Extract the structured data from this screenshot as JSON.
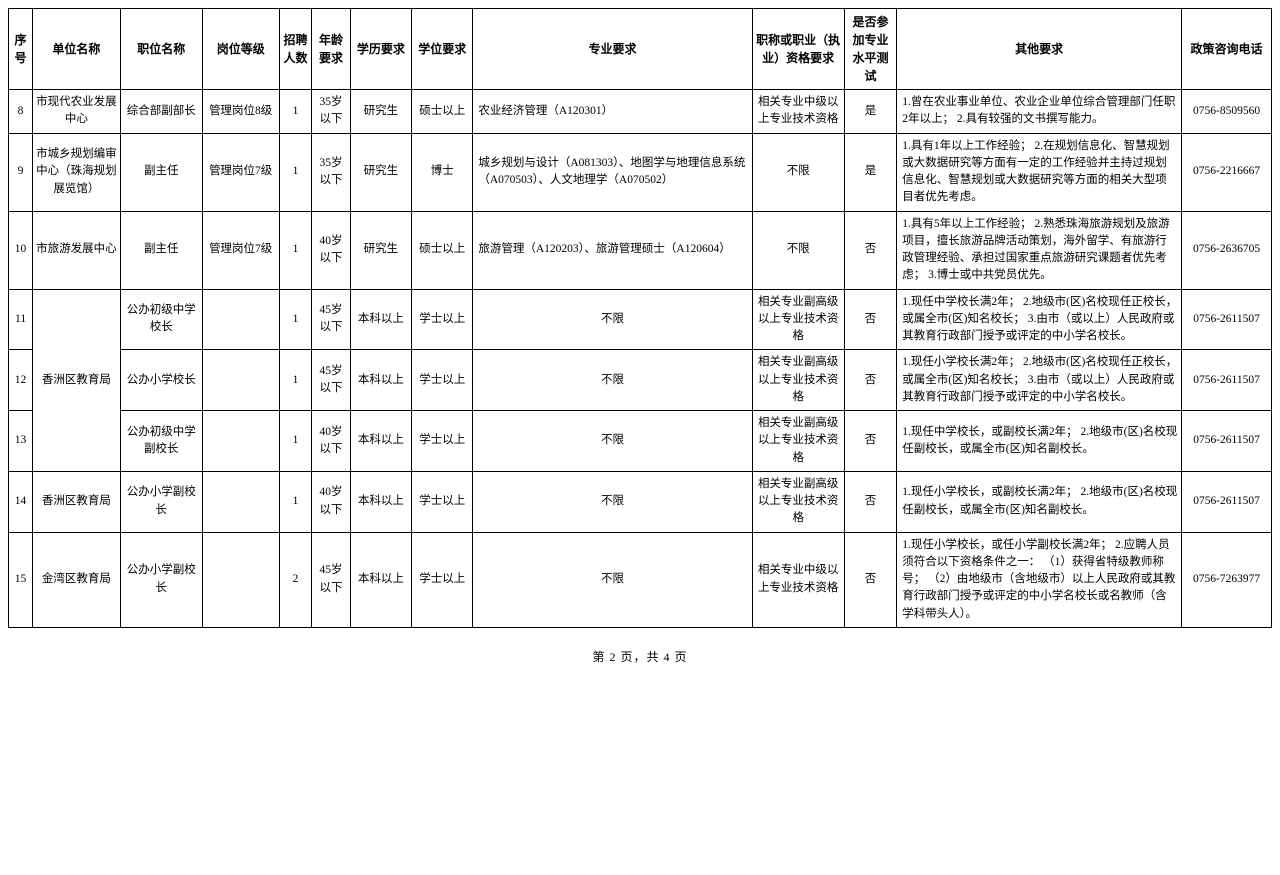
{
  "headers": {
    "seq": "序号",
    "unit": "单位名称",
    "position": "职位名称",
    "grade": "岗位等级",
    "num": "招聘人数",
    "age": "年龄要求",
    "edu": "学历要求",
    "degree": "学位要求",
    "major": "专业要求",
    "qual": "职称或职业（执业）资格要求",
    "test": "是否参加专业水平测试",
    "other": "其他要求",
    "tel": "政策咨询电话"
  },
  "rows": [
    {
      "seq": "8",
      "unit": "市现代农业发展中心",
      "position": "综合部副部长",
      "grade": "管理岗位8级",
      "num": "1",
      "age": "35岁以下",
      "edu": "研究生",
      "degree": "硕士以上",
      "major": "农业经济管理（A120301）",
      "qual": "相关专业中级以上专业技术资格",
      "test": "是",
      "other": "1.曾在农业事业单位、农业企业单位综合管理部门任职2年以上；\n2.具有较强的文书撰写能力。",
      "tel": "0756-8509560"
    },
    {
      "seq": "9",
      "unit": "市城乡规划编审中心（珠海规划展览馆）",
      "position": "副主任",
      "grade": "管理岗位7级",
      "num": "1",
      "age": "35岁以下",
      "edu": "研究生",
      "degree": "博士",
      "major": "城乡规划与设计（A081303）、地图学与地理信息系统（A070503）、人文地理学（A070502）",
      "qual": "不限",
      "test": "是",
      "other": "1.具有1年以上工作经验；\n2.在规划信息化、智慧规划或大数据研究等方面有一定的工作经验并主持过规划信息化、智慧规划或大数据研究等方面的相关大型项目者优先考虑。",
      "tel": "0756-2216667"
    },
    {
      "seq": "10",
      "unit": "市旅游发展中心",
      "position": "副主任",
      "grade": "管理岗位7级",
      "num": "1",
      "age": "40岁以下",
      "edu": "研究生",
      "degree": "硕士以上",
      "major": "旅游管理（A120203）、旅游管理硕士（A120604）",
      "qual": "不限",
      "test": "否",
      "other": "1.具有5年以上工作经验；\n2.熟悉珠海旅游规划及旅游项目，擅长旅游品牌活动策划，海外留学、有旅游行政管理经验、承担过国家重点旅游研究课题者优先考虑；\n3.博士或中共党员优先。",
      "tel": "0756-2636705"
    },
    {
      "seq": "11",
      "unit": "",
      "position": "公办初级中学校长",
      "grade": "",
      "num": "1",
      "age": "45岁以下",
      "edu": "本科以上",
      "degree": "学士以上",
      "major": "不限",
      "qual": "相关专业副高级以上专业技术资格",
      "test": "否",
      "other": "1.现任中学校长满2年；\n2.地级市(区)名校现任正校长，或属全市(区)知名校长；\n3.由市（或以上）人民政府或其教育行政部门授予或评定的中小学名校长。",
      "tel": "0756-2611507"
    },
    {
      "seq": "12",
      "unit": "香洲区教育局",
      "position": "公办小学校长",
      "grade": "",
      "num": "1",
      "age": "45岁以下",
      "edu": "本科以上",
      "degree": "学士以上",
      "major": "不限",
      "qual": "相关专业副高级以上专业技术资格",
      "test": "否",
      "other": "1.现任小学校长满2年；\n2.地级市(区)名校现任正校长，或属全市(区)知名校长；\n3.由市（或以上）人民政府或其教育行政部门授予或评定的中小学名校长。",
      "tel": "0756-2611507"
    },
    {
      "seq": "13",
      "unit": "",
      "position": "公办初级中学副校长",
      "grade": "",
      "num": "1",
      "age": "40岁以下",
      "edu": "本科以上",
      "degree": "学士以上",
      "major": "不限",
      "qual": "相关专业副高级以上专业技术资格",
      "test": "否",
      "other": "1.现任中学校长，或副校长满2年；\n2.地级市(区)名校现任副校长，或属全市(区)知名副校长。",
      "tel": "0756-2611507"
    },
    {
      "seq": "14",
      "unit": "香洲区教育局",
      "position": "公办小学副校长",
      "grade": "",
      "num": "1",
      "age": "40岁以下",
      "edu": "本科以上",
      "degree": "学士以上",
      "major": "不限",
      "qual": "相关专业副高级以上专业技术资格",
      "test": "否",
      "other": "1.现任小学校长，或副校长满2年；\n2.地级市(区)名校现任副校长，或属全市(区)知名副校长。",
      "tel": "0756-2611507"
    },
    {
      "seq": "15",
      "unit": "金湾区教育局",
      "position": "公办小学副校长",
      "grade": "",
      "num": "2",
      "age": "45岁以下",
      "edu": "本科以上",
      "degree": "学士以上",
      "major": "不限",
      "qual": "相关专业中级以上专业技术资格",
      "test": "否",
      "other": "1.现任小学校长，或任小学副校长满2年；\n2.应聘人员须符合以下资格条件之一：\n（1）获得省特级教师称号；\n（2）由地级市（含地级市）以上人民政府或其教育行政部门授予或评定的中小学名校长或名教师（含学科带头人）。",
      "tel": "0756-7263977"
    }
  ],
  "footer": "第 2 页，共 4 页"
}
